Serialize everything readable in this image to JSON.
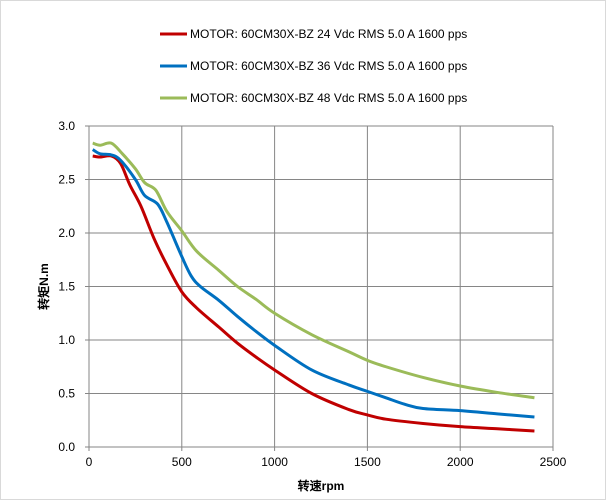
{
  "chart_data": {
    "type": "line",
    "title": "",
    "xlabel": "转速rpm",
    "ylabel": "转矩N.m",
    "xlim": [
      0,
      2500
    ],
    "ylim": [
      0,
      3.0
    ],
    "xticks": [
      "0",
      "500",
      "1000",
      "1500",
      "2000",
      "2500"
    ],
    "yticks": [
      "0.0",
      "0.5",
      "1.0",
      "1.5",
      "2.0",
      "2.5",
      "3.0"
    ],
    "grid": true,
    "legend_position": "top",
    "series": [
      {
        "name": "MOTOR: 60CM30X-BZ   24 Vdc  RMS 5.0 A  1600 pps",
        "color": "#c00000",
        "points": [
          [
            20,
            2.72
          ],
          [
            60,
            2.71
          ],
          [
            120,
            2.72
          ],
          [
            170,
            2.65
          ],
          [
            220,
            2.45
          ],
          [
            280,
            2.25
          ],
          [
            350,
            1.95
          ],
          [
            420,
            1.7
          ],
          [
            500,
            1.45
          ],
          [
            580,
            1.3
          ],
          [
            700,
            1.12
          ],
          [
            800,
            0.97
          ],
          [
            900,
            0.84
          ],
          [
            1000,
            0.72
          ],
          [
            1200,
            0.5
          ],
          [
            1400,
            0.35
          ],
          [
            1500,
            0.3
          ],
          [
            1600,
            0.26
          ],
          [
            1800,
            0.22
          ],
          [
            2000,
            0.19
          ],
          [
            2200,
            0.17
          ],
          [
            2400,
            0.15
          ]
        ]
      },
      {
        "name": "MOTOR: 60CM30X-BZ   36 Vdc  RMS 5.0 A  1600 pps",
        "color": "#0070c0",
        "points": [
          [
            20,
            2.78
          ],
          [
            60,
            2.74
          ],
          [
            120,
            2.73
          ],
          [
            170,
            2.68
          ],
          [
            250,
            2.5
          ],
          [
            300,
            2.35
          ],
          [
            370,
            2.27
          ],
          [
            420,
            2.1
          ],
          [
            500,
            1.78
          ],
          [
            550,
            1.6
          ],
          [
            600,
            1.5
          ],
          [
            700,
            1.37
          ],
          [
            800,
            1.22
          ],
          [
            900,
            1.08
          ],
          [
            1000,
            0.95
          ],
          [
            1200,
            0.72
          ],
          [
            1400,
            0.58
          ],
          [
            1500,
            0.52
          ],
          [
            1600,
            0.46
          ],
          [
            1700,
            0.4
          ],
          [
            1800,
            0.36
          ],
          [
            2000,
            0.34
          ],
          [
            2200,
            0.31
          ],
          [
            2400,
            0.28
          ]
        ]
      },
      {
        "name": "MOTOR: 60CM30X-BZ   48 Vdc  RMS 5.0 A  1600 pps",
        "color": "#9bbb59",
        "points": [
          [
            20,
            2.84
          ],
          [
            60,
            2.82
          ],
          [
            120,
            2.84
          ],
          [
            180,
            2.74
          ],
          [
            250,
            2.6
          ],
          [
            300,
            2.47
          ],
          [
            360,
            2.4
          ],
          [
            420,
            2.2
          ],
          [
            500,
            2.02
          ],
          [
            580,
            1.83
          ],
          [
            700,
            1.65
          ],
          [
            800,
            1.5
          ],
          [
            900,
            1.38
          ],
          [
            1000,
            1.25
          ],
          [
            1200,
            1.05
          ],
          [
            1400,
            0.89
          ],
          [
            1500,
            0.81
          ],
          [
            1600,
            0.75
          ],
          [
            1800,
            0.65
          ],
          [
            2000,
            0.57
          ],
          [
            2200,
            0.51
          ],
          [
            2400,
            0.46
          ]
        ]
      }
    ]
  }
}
